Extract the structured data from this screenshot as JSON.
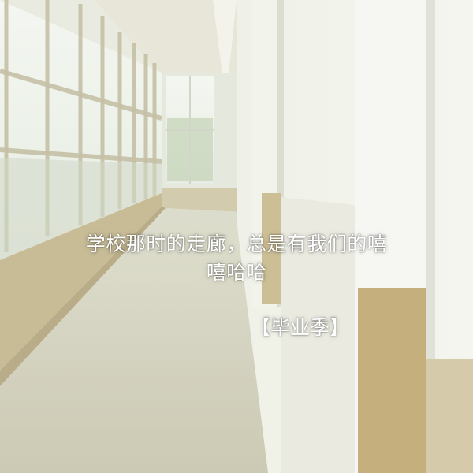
{
  "caption": {
    "line1": "学校那时的走廊，总是有我们的嘻",
    "line2": "嘻哈哈",
    "tag": "【毕业季】"
  }
}
